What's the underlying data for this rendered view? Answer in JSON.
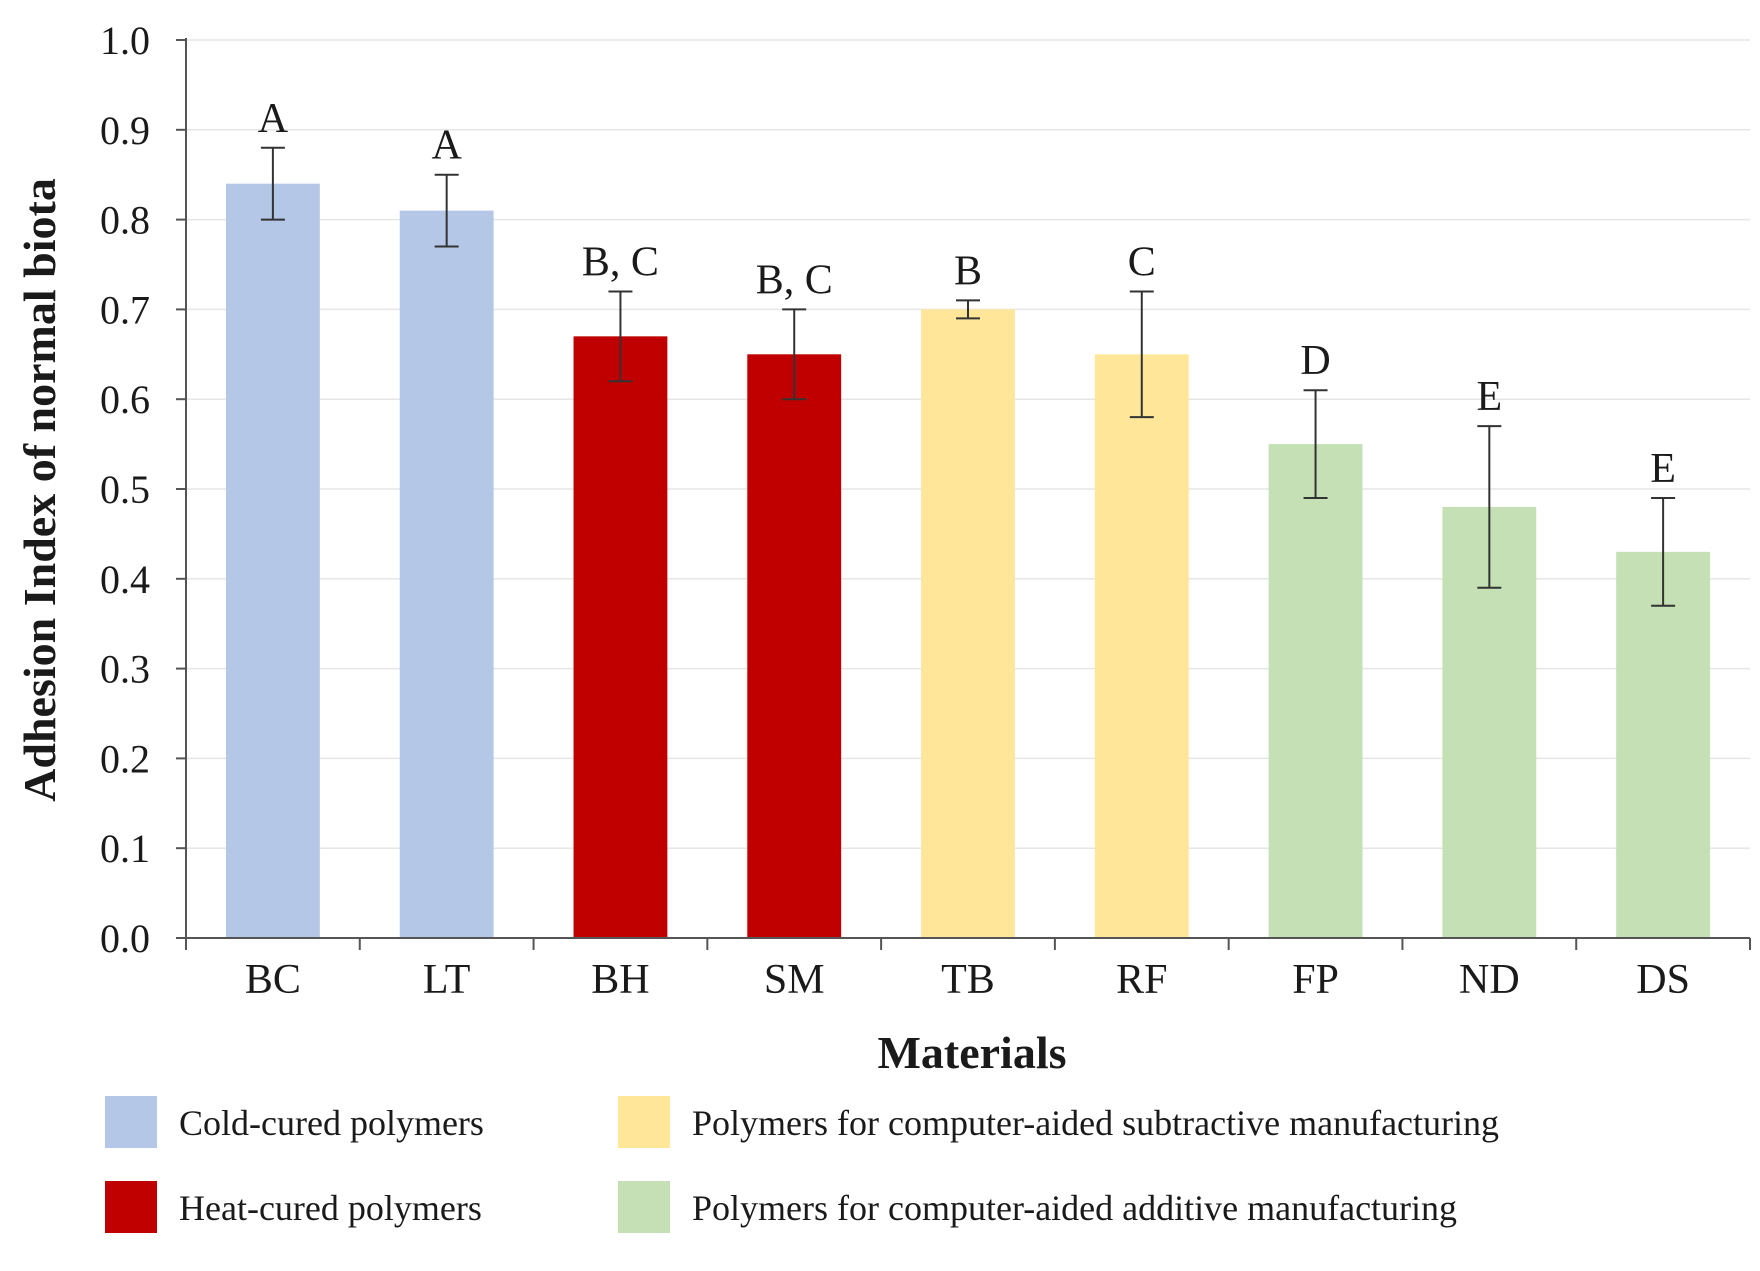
{
  "chart_data": {
    "type": "bar",
    "xlabel": "Materials",
    "ylabel": "Adhesion Index of normal biota",
    "ylim": [
      0,
      1.0
    ],
    "yticks": [
      "0.0",
      "0.1",
      "0.2",
      "0.3",
      "0.4",
      "0.5",
      "0.6",
      "0.7",
      "0.8",
      "0.9",
      "1.0"
    ],
    "grid": true,
    "legend_position": "bottom",
    "categories": [
      "BC",
      "LT",
      "BH",
      "SM",
      "TB",
      "RF",
      "FP",
      "ND",
      "DS"
    ],
    "values": [
      0.84,
      0.81,
      0.67,
      0.65,
      0.7,
      0.65,
      0.55,
      0.48,
      0.43
    ],
    "error_low": [
      0.8,
      0.77,
      0.62,
      0.6,
      0.69,
      0.58,
      0.49,
      0.39,
      0.37
    ],
    "error_high": [
      0.88,
      0.85,
      0.72,
      0.7,
      0.71,
      0.72,
      0.61,
      0.57,
      0.49
    ],
    "significance_labels": [
      "A",
      "A",
      "B, C",
      "B, C",
      "B",
      "C",
      "D",
      "E",
      "E"
    ],
    "groups": [
      0,
      0,
      1,
      1,
      2,
      2,
      3,
      3,
      3
    ],
    "legend": [
      {
        "label": "Cold-cured polymers",
        "color": "#b4c7e7"
      },
      {
        "label": "Heat-cured polymers",
        "color": "#c00000"
      },
      {
        "label": "Polymers for computer-aided subtractive manufacturing",
        "color": "#ffe699"
      },
      {
        "label": "Polymers for computer-aided additive manufacturing",
        "color": "#c5e0b4"
      }
    ]
  }
}
